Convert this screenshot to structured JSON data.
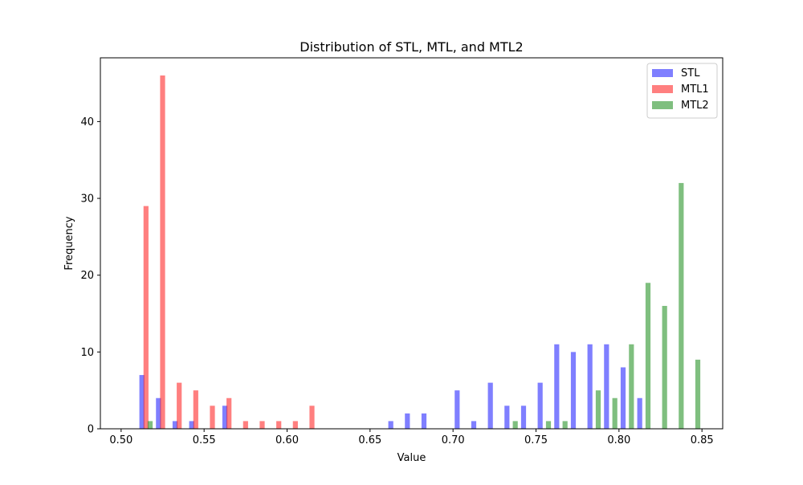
{
  "chart_data": {
    "type": "bar",
    "title": "Distribution of STL, MTL, and MTL2",
    "xlabel": "Value",
    "ylabel": "Frequency",
    "xlim": [
      0.4875,
      0.8625
    ],
    "ylim": [
      0,
      48.3
    ],
    "xticks": [
      0.5,
      0.55,
      0.6,
      0.65,
      0.7,
      0.75,
      0.8,
      0.85
    ],
    "xtick_labels": [
      "0.50",
      "0.55",
      "0.60",
      "0.65",
      "0.70",
      "0.75",
      "0.80",
      "0.85"
    ],
    "yticks": [
      0,
      10,
      20,
      30,
      40
    ],
    "ytick_labels": [
      "0",
      "10",
      "20",
      "30",
      "40"
    ],
    "grid": false,
    "legend_position": "top-right",
    "series": [
      {
        "name": "STL",
        "color": "#0000ff",
        "opacity": 0.5,
        "x": [
          0.5125,
          0.5225,
          0.5325,
          0.5425,
          0.5625,
          0.6625,
          0.6725,
          0.6825,
          0.7025,
          0.7125,
          0.7225,
          0.7325,
          0.7425,
          0.7525,
          0.7625,
          0.7725,
          0.7825,
          0.7925,
          0.8025,
          0.8125
        ],
        "values": [
          7,
          4,
          1,
          1,
          3,
          1,
          2,
          2,
          5,
          1,
          6,
          3,
          3,
          6,
          11,
          10,
          11,
          11,
          8,
          4
        ]
      },
      {
        "name": "MTL1",
        "color": "#ff0000",
        "opacity": 0.5,
        "x": [
          0.515,
          0.525,
          0.535,
          0.545,
          0.555,
          0.565,
          0.575,
          0.585,
          0.595,
          0.605,
          0.615
        ],
        "values": [
          29,
          46,
          6,
          5,
          3,
          4,
          1,
          1,
          1,
          1,
          3
        ]
      },
      {
        "name": "MTL2",
        "color": "#008000",
        "opacity": 0.5,
        "x": [
          0.5175,
          0.7375,
          0.7575,
          0.7675,
          0.7875,
          0.7975,
          0.8075,
          0.8175,
          0.8275,
          0.8375,
          0.8475
        ],
        "values": [
          1,
          1,
          1,
          1,
          5,
          4,
          11,
          19,
          16,
          32,
          9
        ]
      }
    ]
  }
}
